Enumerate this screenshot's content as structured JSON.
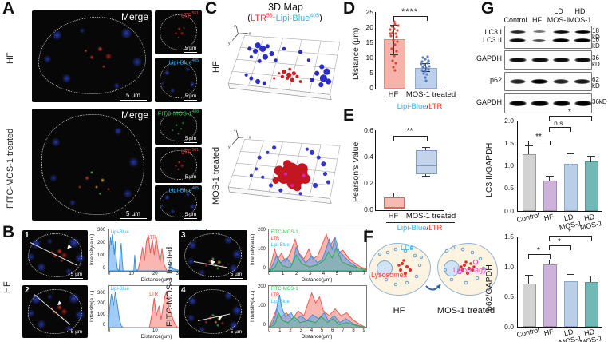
{
  "colors": {
    "ltr_red": "#ff3b33",
    "lipi_cyan": "#29b6f2",
    "fitc_green": "#2bd04e",
    "lipophagy_magenta": "#e64ac8",
    "bar_hf_fill": "#f6b3a9",
    "bar_mos_fill": "#bcd0ec",
    "bar_control_fill": "#d2d2d2",
    "bar_hf_purple": "#cdb3da",
    "bar_ld_blue": "#b9cfe9",
    "bar_hd_teal": "#72b9b5"
  },
  "panel_a": {
    "label": "A",
    "groups": [
      {
        "row_label": "HF",
        "merge_label": "Merge",
        "scale_bar": "5 µm",
        "thumbs": [
          {
            "name": "LTR",
            "sup": "561",
            "scale_bar": "5 µm"
          },
          {
            "name": "Lipi-Blue",
            "sup": "405",
            "scale_bar": "5 µm"
          }
        ]
      },
      {
        "row_label": "FITC-MOS-1 treated",
        "merge_label": "Merge",
        "scale_bar": "5 µm",
        "thumbs": [
          {
            "name": "FITC-MOS-1",
            "sup": "488",
            "scale_bar": "5 µm"
          },
          {
            "name": "LTR",
            "sup": "561",
            "scale_bar": "5 µm"
          },
          {
            "name": "Lipi-Blue",
            "sup": "405",
            "scale_bar": "5 µm"
          }
        ]
      }
    ]
  },
  "panel_b": {
    "label": "B",
    "left_group_label": "HF",
    "right_group_label": "FITC-MOS-1 treated",
    "images": [
      {
        "num": "1",
        "scale_bar": "5 µm"
      },
      {
        "num": "2",
        "scale_bar": "5 µm"
      },
      {
        "num": "3",
        "scale_bar": "5 µm"
      },
      {
        "num": "4",
        "scale_bar": "5 µm"
      }
    ]
  },
  "panel_c": {
    "label": "C",
    "title": "3D  Map",
    "legend": {
      "open": "(",
      "ltr": "LTR",
      "ltr_sup": "561",
      "lipi": "Lipi-Blue",
      "lipi_sup": "405",
      "close": ")"
    },
    "axes": [
      "x",
      "y",
      "z"
    ],
    "plots": [
      {
        "row_label": "HF"
      },
      {
        "row_label": "MOS-1 treated"
      }
    ]
  },
  "panel_d": {
    "label": "D"
  },
  "panel_e": {
    "label": "E"
  },
  "panel_f": {
    "label": "F",
    "left": {
      "ld": "LDs",
      "lyso": "Lysosomes",
      "caption": "HF"
    },
    "right": {
      "lipophagy": "Lipophagy",
      "caption": "MOS-1 treated"
    }
  },
  "panel_g": {
    "label": "G",
    "lanes": [
      {
        "line1": "",
        "line2": "Control"
      },
      {
        "line1": "",
        "line2": "HF"
      },
      {
        "line1": "LD",
        "line2": "MOS-1"
      },
      {
        "line1": "HD",
        "line2": "MOS-1"
      }
    ],
    "blots": [
      {
        "label1": "LC3 I",
        "label2": "LC3 II",
        "kd1": "18 kD",
        "kd2": "16 kD"
      },
      {
        "label1": "GAPDH",
        "kd1": "36 kD"
      },
      {
        "label1": "p62",
        "kd1": "62 kD"
      },
      {
        "label1": "GAPDH",
        "kd1": "36kD"
      }
    ]
  },
  "chart_data": [
    {
      "id": "distance_bar",
      "panel": "D",
      "type": "bar",
      "ylabel": "Distance (µm)",
      "ymax": 25,
      "yticks": [
        "25",
        "20",
        "15",
        "10",
        "5",
        "0"
      ],
      "categories": [
        "HF",
        "MOS-1 treated"
      ],
      "values": [
        16.1,
        6.8
      ],
      "errors": [
        5.0,
        1.4
      ],
      "points_hf": [
        21.5,
        21,
        20.5,
        20.5,
        20,
        19.5,
        19,
        19,
        18.5,
        18,
        17,
        16,
        15,
        14.5,
        13,
        12,
        11.5,
        10,
        9,
        8,
        7,
        6.5
      ],
      "points_mos": [
        9,
        8.8,
        8.5,
        8.2,
        8,
        8,
        7.8,
        7.5,
        7.3,
        7,
        7,
        6.8,
        6.5,
        6.2,
        6,
        5.5,
        5,
        3.5
      ],
      "significance": "****",
      "group_label": {
        "cyan": "Lipi-Blue",
        "sep": "/",
        "red": "LTR"
      }
    },
    {
      "id": "pearson_box",
      "panel": "E",
      "type": "box",
      "ylabel": "Pearson's Value",
      "ymax": 0.6,
      "yticks": [
        "0.6",
        "0.4",
        "0.2",
        "0.0"
      ],
      "categories": [
        "HF",
        "MOS-1 treated"
      ],
      "boxes": [
        {
          "whisker_low": 0.005,
          "q1": 0.015,
          "median": 0.02,
          "q3": 0.1,
          "whisker_high": 0.13
        },
        {
          "whisker_low": 0.25,
          "q1": 0.27,
          "median": 0.34,
          "q3": 0.45,
          "whisker_high": 0.47
        }
      ],
      "significance": "**",
      "group_label": {
        "cyan": "Lipi-Blue",
        "sep": "/",
        "red": "LTR"
      }
    },
    {
      "id": "lc3_bar",
      "panel": "G",
      "type": "bar",
      "ylabel": "LC3 II/GAPDH",
      "ymax": 2.0,
      "yticks": [
        "2.0",
        "1.5",
        "1.0",
        "0.5",
        "0.0"
      ],
      "categories": [
        "Control",
        "HF",
        "LD MOS-1",
        "HD MOS-1"
      ],
      "values": [
        1.27,
        0.68,
        1.06,
        1.1
      ],
      "errors": [
        0.19,
        0.11,
        0.22,
        0.14
      ],
      "significance": [
        {
          "compare": "Control vs HF",
          "label": "**"
        },
        {
          "compare": "HF vs LD MOS-1",
          "label": "n.s."
        },
        {
          "compare": "HF vs HD MOS-1",
          "label": "*"
        }
      ]
    },
    {
      "id": "p62_bar",
      "panel": "G",
      "type": "bar",
      "ylabel": "p62/GAPDH",
      "ymax": 1.5,
      "yticks": [
        "1.5",
        "1.0",
        "0.5",
        "0.0"
      ],
      "categories": [
        "Control",
        "HF",
        "LD MOS-1",
        "HD MOS-1"
      ],
      "values": [
        0.73,
        1.04,
        0.76,
        0.75
      ],
      "errors": [
        0.14,
        0.08,
        0.12,
        0.11
      ],
      "significance": [
        {
          "compare": "Control vs HF",
          "label": "*"
        },
        {
          "compare": "HF vs LD MOS-1",
          "label": "*"
        },
        {
          "compare": "HF vs HD MOS-1",
          "label": "*"
        }
      ]
    },
    {
      "id": "profile_1",
      "panel": "B",
      "type": "area",
      "ylabel": "Intensity(a.u.)",
      "xlabel": "Distance(µm)",
      "yticks": [
        "300",
        "200",
        "100",
        "0"
      ],
      "xticks": [
        "0",
        "10",
        "20",
        "30",
        "40"
      ],
      "x_range_um": [
        0,
        40
      ],
      "y_range": [
        0,
        300
      ],
      "legend": [
        "Lipi-Blue",
        "LTR",
        "Lipi-Blue"
      ]
    },
    {
      "id": "profile_2",
      "panel": "B",
      "type": "area",
      "ylabel": "Intensity(a.u.)",
      "xlabel": "Distance(µm)",
      "yticks": [
        "300",
        "200",
        "100",
        "0"
      ],
      "xticks": [
        "0",
        "10",
        "20"
      ],
      "x_range_um": [
        0,
        20
      ],
      "y_range": [
        0,
        300
      ],
      "legend": [
        "Lipi-Blue",
        "LTR",
        "Lipi-Blue"
      ]
    },
    {
      "id": "profile_3",
      "panel": "B",
      "type": "area",
      "ylabel": "Intensity(a.u.)",
      "xlabel": "Distance(µm)",
      "yticks": [
        "200",
        "100",
        "0"
      ],
      "xticks": [
        "0",
        "1",
        "2",
        "3",
        "4",
        "5",
        "6",
        "7"
      ],
      "x_range_um": [
        0,
        7
      ],
      "y_range": [
        0,
        200
      ],
      "legend": [
        "FITC-MOS-1",
        "LTR",
        "Lipi-Blue"
      ]
    },
    {
      "id": "profile_4",
      "panel": "B",
      "type": "area",
      "ylabel": "Intensity(a.u.)",
      "xlabel": "Distance(µm)",
      "yticks": [
        "200",
        "100",
        "0"
      ],
      "xticks": [
        "0",
        "1",
        "2",
        "3",
        "4",
        "5",
        "6",
        "7",
        "8",
        "9"
      ],
      "x_range_um": [
        0,
        9
      ],
      "y_range": [
        0,
        200
      ],
      "legend": [
        "FITC-MOS-1",
        "LTR",
        "Lipi-Blue"
      ]
    }
  ]
}
